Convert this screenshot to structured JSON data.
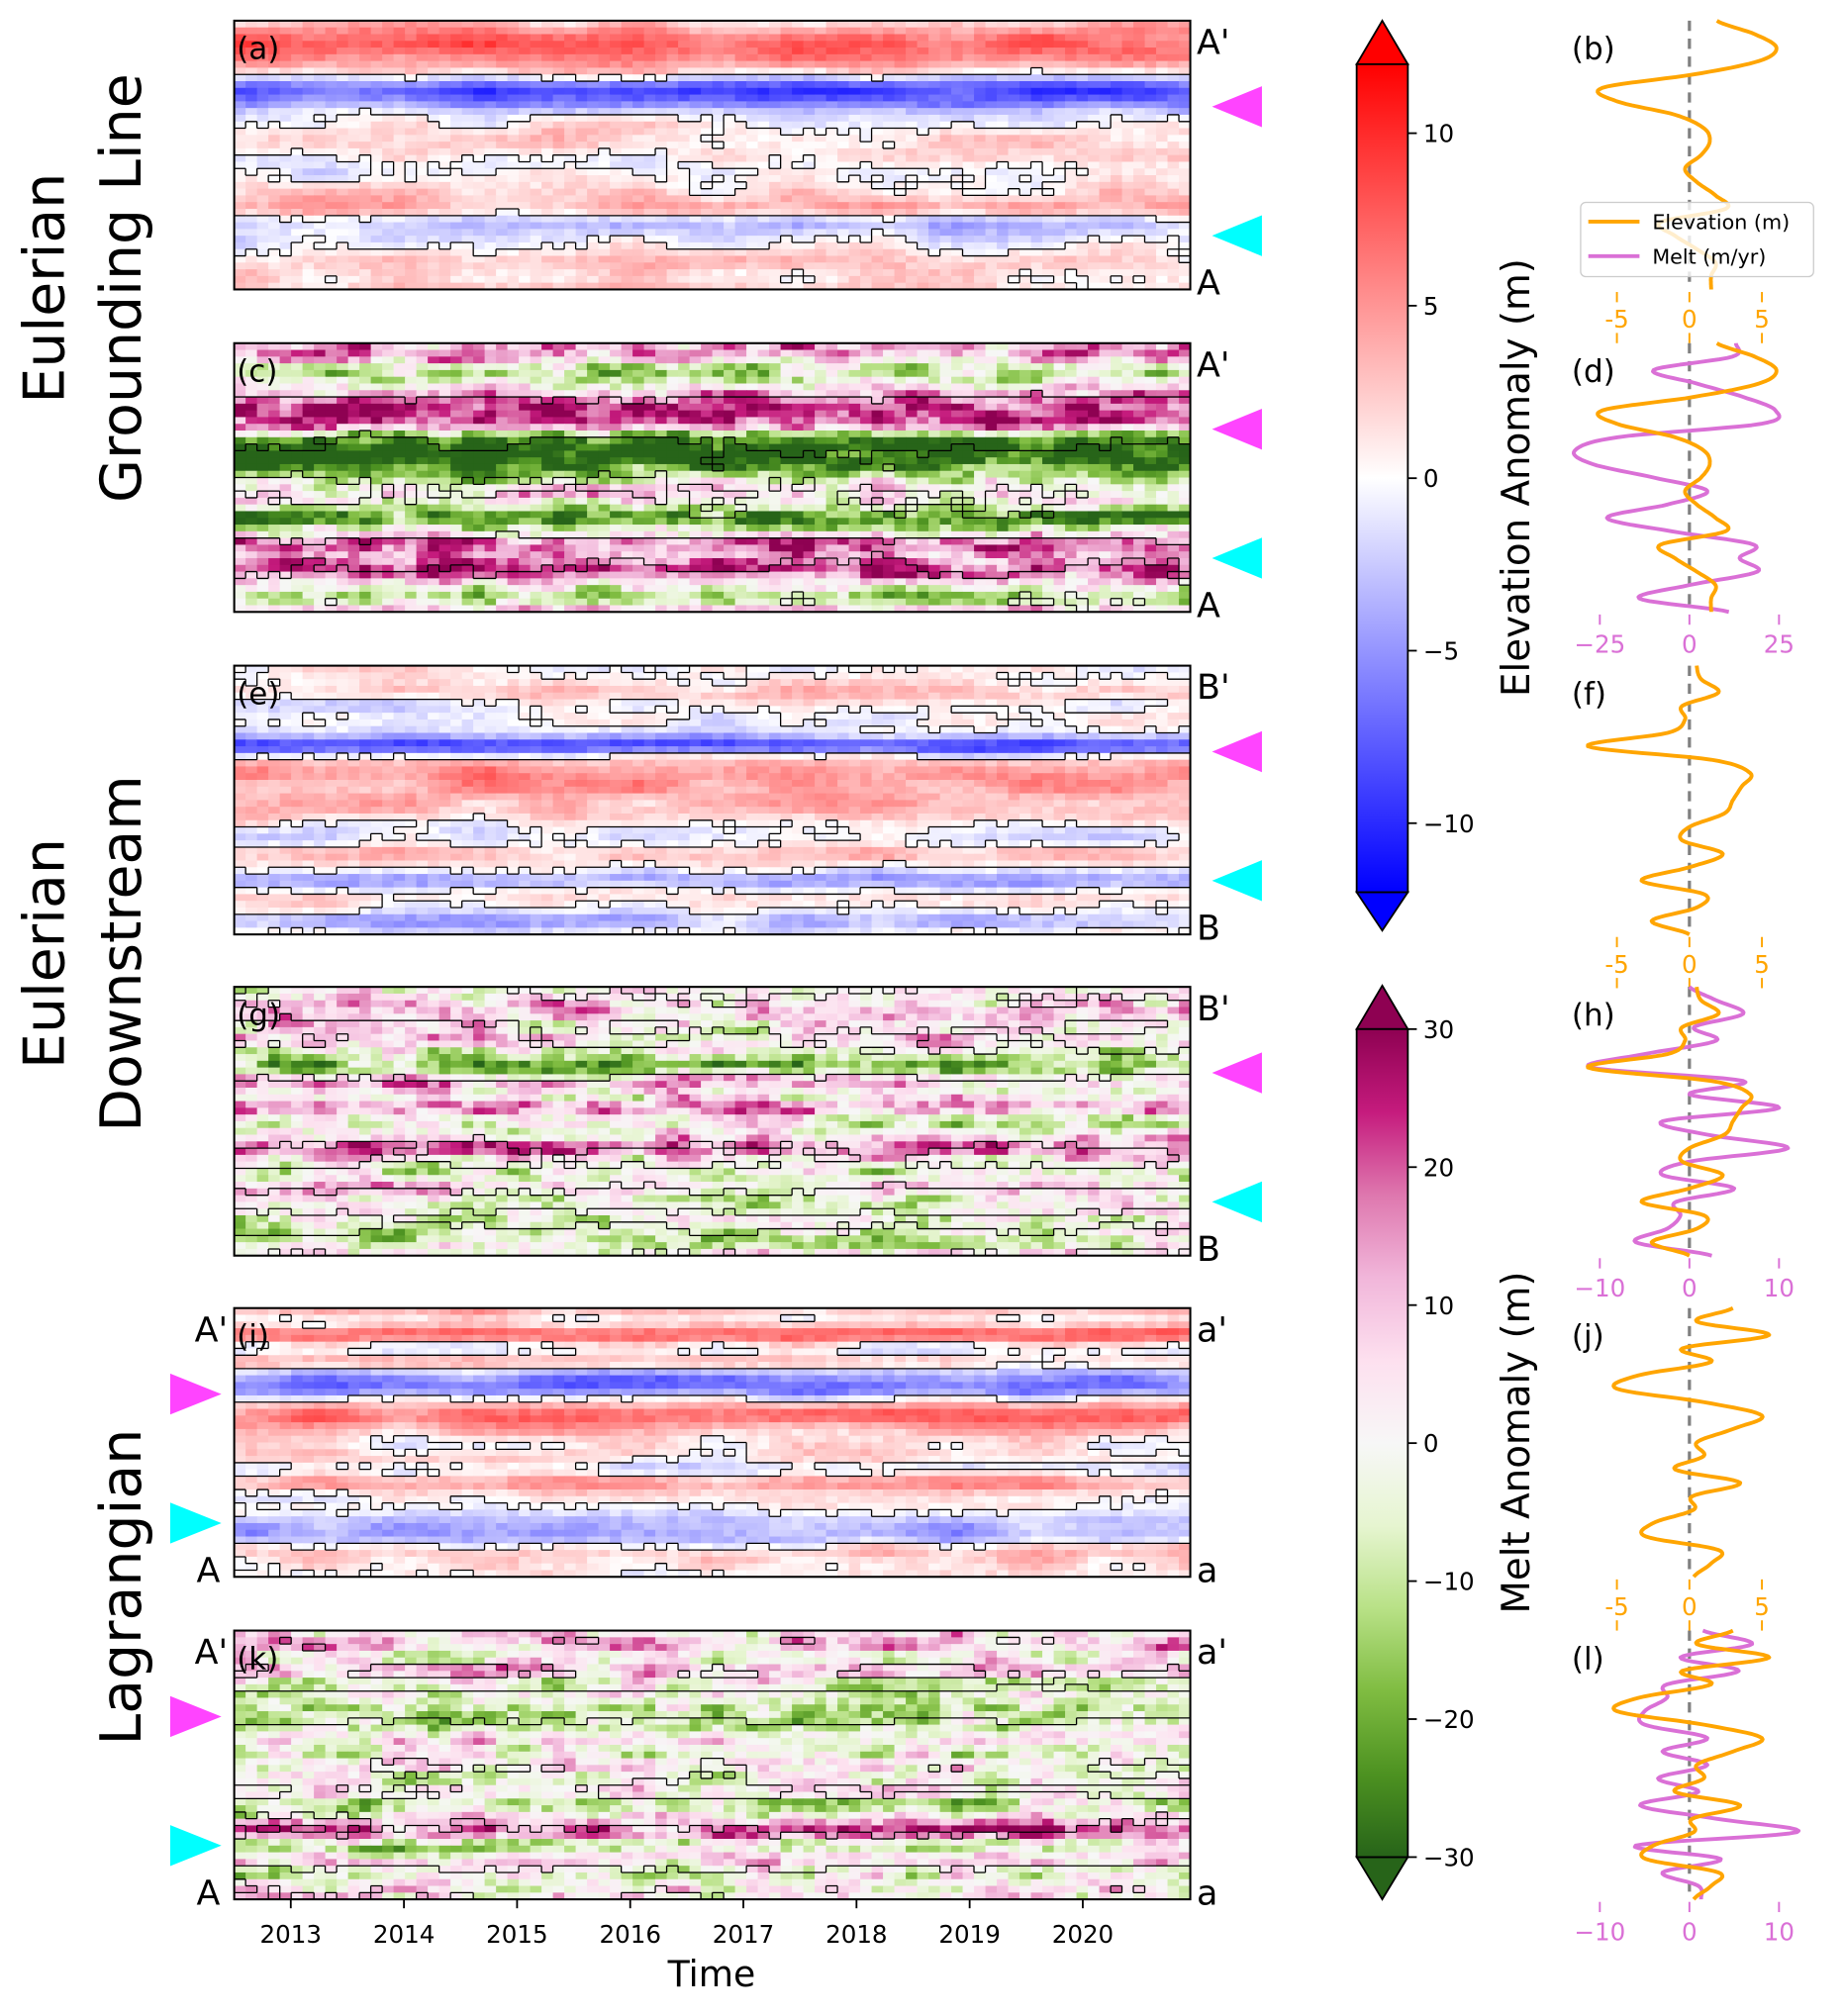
{
  "figure": {
    "row_labels": [
      {
        "line1": "Eulerian",
        "line2": "Grounding Line"
      },
      {
        "line1": "Eulerian",
        "line2": "Downstream"
      },
      {
        "line1": "",
        "line2": "Lagrangian"
      }
    ],
    "xlabel": "Time",
    "x_ticks": [
      "2013",
      "2014",
      "2015",
      "2016",
      "2017",
      "2018",
      "2019",
      "2020"
    ],
    "colors": {
      "elevation_line": "#ffa500",
      "melt_line": "#da70d6",
      "zero_line": "#808080",
      "arrow_upper": "#ff44ff",
      "arrow_lower": "#00ffff"
    }
  },
  "colorbars": [
    {
      "label": "Elevation Anomaly (m)",
      "range": [
        -12,
        12
      ],
      "ticks": [
        "10",
        "5",
        "0",
        "−5",
        "−10"
      ],
      "tick_values": [
        10,
        5,
        0,
        -5,
        -10
      ],
      "colormap": "bwr",
      "extend": "both"
    },
    {
      "label": "Melt Anomaly (m)",
      "range": [
        -30,
        30
      ],
      "ticks": [
        "30",
        "20",
        "10",
        "0",
        "−10",
        "−20",
        "−30"
      ],
      "tick_values": [
        30,
        20,
        10,
        0,
        -10,
        -20,
        -30
      ],
      "colormap": "PiYG_r",
      "extend": "both"
    }
  ],
  "legend": {
    "items": [
      "Elevation (m)",
      "Melt (m/yr)"
    ],
    "placement": "inside panel (b)"
  },
  "chart_data": [
    {
      "type": "heatmap",
      "panel": "(a)",
      "field": "elevation",
      "xlim": [
        2012.5,
        2020.95
      ],
      "top_label": "A'",
      "bottom_label": "A",
      "profile": 0
    },
    {
      "type": "heatmap",
      "panel": "(c)",
      "field": "melt",
      "xlim": [
        2012.5,
        2020.95
      ],
      "top_label": "A'",
      "bottom_label": "A",
      "profile": 0
    },
    {
      "type": "heatmap",
      "panel": "(e)",
      "field": "elevation",
      "xlim": [
        2012.5,
        2020.95
      ],
      "top_label": "B'",
      "bottom_label": "B",
      "profile": 1
    },
    {
      "type": "heatmap",
      "panel": "(g)",
      "field": "melt",
      "xlim": [
        2012.5,
        2020.95
      ],
      "top_label": "B'",
      "bottom_label": "B",
      "profile": 1
    },
    {
      "type": "heatmap",
      "panel": "(i)",
      "field": "elevation",
      "xlim": [
        2012.5,
        2020.95
      ],
      "left_top_label": "A'",
      "left_bottom_label": "A",
      "top_label": "a'",
      "bottom_label": "a",
      "profile": 2
    },
    {
      "type": "heatmap",
      "panel": "(k)",
      "field": "melt",
      "xlim": [
        2012.5,
        2020.95
      ],
      "left_top_label": "A'",
      "left_bottom_label": "A",
      "top_label": "a'",
      "bottom_label": "a",
      "profile": 2
    }
  ],
  "profiles": [
    {
      "panels": [
        "(b)",
        "(d)"
      ],
      "elevation_ticks": [
        "-5",
        "0",
        "5"
      ],
      "elevation_tick_values": [
        -5,
        0,
        5
      ],
      "melt_ticks": [
        "−25",
        "0",
        "25"
      ],
      "melt_tick_values": [
        -25,
        0,
        25
      ],
      "melt_xlim": [
        -35,
        35
      ],
      "elevation": [
        1.9,
        4.5,
        6.0,
        4.8,
        0.3,
        -6.0,
        -5.0,
        -1.0,
        1.0,
        1.4,
        0.8,
        -0.3,
        0.5,
        1.8,
        2.5,
        -2.0,
        -1.0,
        0.5,
        1.8,
        1.5,
        1.5
      ],
      "melt": [
        13,
        12,
        -10,
        2,
        15,
        24,
        20,
        -20,
        -32,
        -27,
        -10,
        5,
        -6,
        -23,
        -5,
        18,
        14,
        19,
        0,
        -14,
        11
      ]
    },
    {
      "panels": [
        "(f)",
        "(h)"
      ],
      "elevation_ticks": [
        "-5",
        "0",
        "5"
      ],
      "elevation_tick_values": [
        -5,
        0,
        5
      ],
      "melt_ticks": [
        "−10",
        "0",
        "10"
      ],
      "melt_tick_values": [
        -10,
        0,
        10
      ],
      "melt_xlim": [
        -13.5,
        13.5
      ],
      "elevation": [
        0.5,
        0.8,
        2.0,
        -0.5,
        -0.3,
        -1.5,
        -7.0,
        1.5,
        4.2,
        3.6,
        3.0,
        2.4,
        0.0,
        -0.5,
        2.3,
        0.0,
        -3.3,
        1.0,
        0.5,
        -2.6,
        0.0
      ],
      "melt": [
        0,
        3,
        6,
        0.5,
        3,
        -5,
        -11,
        6,
        0,
        10,
        -3,
        2,
        11,
        0,
        -3,
        5,
        -1.5,
        -1,
        -2.5,
        -6,
        2.5
      ]
    },
    {
      "panels": [
        "(j)",
        "(l)"
      ],
      "elevation_ticks": [
        "-5",
        "0",
        "5"
      ],
      "elevation_tick_values": [
        -5,
        0,
        5
      ],
      "melt_ticks": [
        "−10",
        "0",
        "10"
      ],
      "melt_tick_values": [
        -10,
        0,
        10
      ],
      "melt_xlim": [
        -13.5,
        13.5
      ],
      "elevation": [
        3.0,
        0.5,
        5.5,
        -0.5,
        1.5,
        -3.5,
        -5.0,
        1.0,
        5.0,
        3.0,
        0.5,
        1.0,
        -1.0,
        3.5,
        0.2,
        0.3,
        -2.5,
        -3.0,
        2.0,
        1.5,
        0.3
      ],
      "melt": [
        1.5,
        7,
        -1,
        5.5,
        -2.5,
        -2.5,
        -5,
        -5,
        2,
        -3,
        2,
        -3.5,
        1,
        -5.5,
        3,
        12,
        -6,
        3.5,
        -3,
        1,
        1.3
      ]
    }
  ]
}
